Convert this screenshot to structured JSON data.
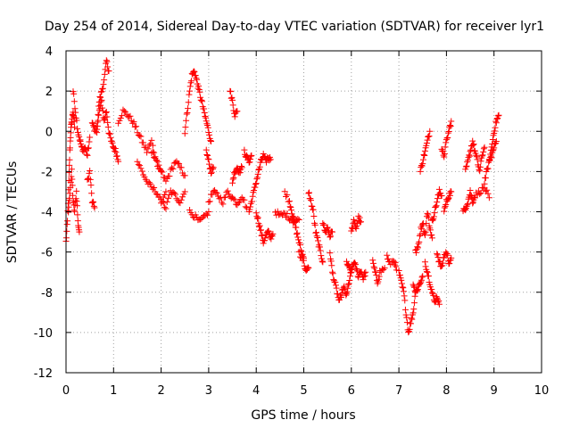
{
  "chart_data": {
    "type": "scatter",
    "title": "Day 254 of 2014, Sidereal Day-to-day VTEC variation (SDTVAR) for receiver lyr1",
    "xlabel": "GPS time / hours",
    "ylabel": "SDTVAR / TECUs",
    "xlim": [
      0,
      10
    ],
    "ylim": [
      -12,
      4
    ],
    "xticks": [
      "0",
      "1",
      "2",
      "3",
      "4",
      "5",
      "6",
      "7",
      "8",
      "9",
      "10"
    ],
    "yticks": [
      "4",
      "2",
      "0",
      "-2",
      "-4",
      "-6",
      "-8",
      "-10",
      "-12"
    ],
    "grid": true,
    "marker": "+",
    "color": "#ff0000",
    "series": [
      {
        "name": "SDTVAR",
        "segments": [
          {
            "x": [
              0.0,
              0.03,
              0.06,
              0.08,
              0.1,
              0.12,
              0.15,
              0.18
            ],
            "y": [
              -5.5,
              -4.5,
              -2.5,
              -1.0,
              0.0,
              0.5,
              1.0,
              0.2
            ]
          },
          {
            "x": [
              0.05,
              0.08,
              0.12,
              0.15,
              0.18,
              0.22,
              0.25,
              0.28
            ],
            "y": [
              -4.0,
              -3.0,
              -2.0,
              -3.5,
              -4.0,
              -3.0,
              -4.5,
              -5.0
            ]
          },
          {
            "x": [
              0.15,
              0.2,
              0.25,
              0.3
            ],
            "y": [
              2.0,
              1.0,
              0.0,
              -0.5
            ]
          },
          {
            "x": [
              0.3,
              0.35,
              0.4,
              0.45,
              0.5
            ],
            "y": [
              -0.5,
              -1.0,
              -0.8,
              -1.2,
              -0.3
            ]
          },
          {
            "x": [
              0.45,
              0.5,
              0.55,
              0.6
            ],
            "y": [
              -2.5,
              -2.0,
              -3.5,
              -3.8
            ]
          },
          {
            "x": [
              0.55,
              0.6,
              0.65,
              0.7,
              0.75,
              0.8,
              0.85,
              0.9
            ],
            "y": [
              0.5,
              0.0,
              0.2,
              1.5,
              2.0,
              2.5,
              3.5,
              3.0
            ]
          },
          {
            "x": [
              0.65,
              0.7,
              0.75,
              0.8,
              0.85,
              0.9,
              0.95,
              1.0,
              1.05,
              1.1
            ],
            "y": [
              0.0,
              1.0,
              1.5,
              0.5,
              1.0,
              0.0,
              -0.5,
              -0.8,
              -1.0,
              -1.5
            ]
          },
          {
            "x": [
              1.1,
              1.2,
              1.3,
              1.4,
              1.5,
              1.6,
              1.7,
              1.8,
              1.9,
              2.0
            ],
            "y": [
              0.5,
              1.0,
              0.8,
              0.5,
              0.0,
              -0.5,
              -1.0,
              -0.5,
              -1.5,
              -2.0
            ]
          },
          {
            "x": [
              1.5,
              1.6,
              1.7,
              1.8,
              1.9,
              2.0,
              2.1
            ],
            "y": [
              -1.5,
              -2.0,
              -2.5,
              -2.8,
              -3.0,
              -3.5,
              -3.0
            ]
          },
          {
            "x": [
              1.8,
              1.9,
              2.0,
              2.1,
              2.2,
              2.3,
              2.4,
              2.5
            ],
            "y": [
              -1.0,
              -1.5,
              -2.0,
              -2.5,
              -2.0,
              -1.5,
              -1.8,
              -2.2
            ]
          },
          {
            "x": [
              2.0,
              2.1,
              2.2,
              2.3,
              2.4,
              2.5
            ],
            "y": [
              -3.5,
              -3.8,
              -3.0,
              -3.2,
              -3.5,
              -3.0
            ]
          },
          {
            "x": [
              2.5,
              2.55,
              2.6,
              2.65,
              2.7,
              2.75,
              2.8,
              2.85,
              2.9,
              2.95,
              3.0,
              3.05
            ],
            "y": [
              0.0,
              1.0,
              2.0,
              2.8,
              3.0,
              2.5,
              2.0,
              1.5,
              1.0,
              0.5,
              0.0,
              -0.5
            ]
          },
          {
            "x": [
              2.6,
              2.7,
              2.8,
              2.9,
              3.0
            ],
            "y": [
              -4.0,
              -4.2,
              -4.5,
              -4.3,
              -4.0
            ]
          },
          {
            "x": [
              2.95,
              3.0,
              3.05,
              3.1
            ],
            "y": [
              -1.0,
              -1.5,
              -2.0,
              -1.8
            ]
          },
          {
            "x": [
              3.0,
              3.1,
              3.2,
              3.3,
              3.4,
              3.5,
              3.6,
              3.7,
              3.8
            ],
            "y": [
              -3.5,
              -3.0,
              -3.2,
              -3.5,
              -3.0,
              -3.3,
              -3.6,
              -3.2,
              -3.8
            ]
          },
          {
            "x": [
              3.45,
              3.5,
              3.55,
              3.6
            ],
            "y": [
              2.0,
              1.5,
              0.8,
              1.0
            ]
          },
          {
            "x": [
              3.5,
              3.55,
              3.6,
              3.65,
              3.7
            ],
            "y": [
              -2.5,
              -2.0,
              -1.8,
              -2.0,
              -1.8
            ]
          },
          {
            "x": [
              3.75,
              3.8,
              3.85,
              3.9
            ],
            "y": [
              -1.0,
              -1.3,
              -1.5,
              -1.2
            ]
          },
          {
            "x": [
              3.85,
              3.9,
              3.95,
              4.0,
              4.05,
              4.1,
              4.15,
              4.2,
              4.25,
              4.3
            ],
            "y": [
              -4.0,
              -3.5,
              -3.0,
              -2.5,
              -2.0,
              -1.5,
              -1.2,
              -1.5,
              -1.3,
              -1.4
            ]
          },
          {
            "x": [
              4.0,
              4.05,
              4.1,
              4.15,
              4.2,
              4.25,
              4.3,
              4.35
            ],
            "y": [
              -4.0,
              -4.5,
              -5.0,
              -5.5,
              -5.2,
              -5.0,
              -5.3,
              -5.1
            ]
          },
          {
            "x": [
              4.4,
              4.5,
              4.6,
              4.7,
              4.8,
              4.9
            ],
            "y": [
              -4.0,
              -4.2,
              -4.1,
              -4.3,
              -4.5,
              -4.4
            ]
          },
          {
            "x": [
              4.6,
              4.7,
              4.75,
              4.8,
              4.85,
              4.9,
              4.95,
              5.0
            ],
            "y": [
              -3.0,
              -3.5,
              -4.0,
              -4.5,
              -5.0,
              -5.5,
              -6.0,
              -6.3
            ]
          },
          {
            "x": [
              4.9,
              5.0,
              5.05,
              5.1
            ],
            "y": [
              -6.0,
              -6.5,
              -7.0,
              -6.8
            ]
          },
          {
            "x": [
              5.1,
              5.15,
              5.2,
              5.25,
              5.3,
              5.35,
              5.4
            ],
            "y": [
              -3.0,
              -3.5,
              -4.0,
              -5.0,
              -5.5,
              -6.0,
              -6.5
            ]
          },
          {
            "x": [
              5.4,
              5.45,
              5.5,
              5.55,
              5.6
            ],
            "y": [
              -4.5,
              -5.0,
              -4.8,
              -5.2,
              -5.0
            ]
          },
          {
            "x": [
              5.55,
              5.6,
              5.65,
              5.7,
              5.75,
              5.8,
              5.85,
              5.9,
              5.95,
              6.0
            ],
            "y": [
              -6.0,
              -7.0,
              -7.5,
              -8.0,
              -8.5,
              -8.0,
              -7.8,
              -8.2,
              -7.5,
              -7.0
            ]
          },
          {
            "x": [
              5.9,
              5.95,
              6.0,
              6.05,
              6.1,
              6.15,
              6.2,
              6.25,
              6.3
            ],
            "y": [
              -6.5,
              -6.8,
              -7.0,
              -6.5,
              -6.8,
              -7.2,
              -6.9,
              -7.3,
              -7.0
            ]
          },
          {
            "x": [
              6.0,
              6.05,
              6.1,
              6.15,
              6.2
            ],
            "y": [
              -5.0,
              -4.5,
              -4.8,
              -4.3,
              -4.5
            ]
          },
          {
            "x": [
              6.45,
              6.5,
              6.55,
              6.6,
              6.7
            ],
            "y": [
              -6.5,
              -7.0,
              -7.5,
              -7.0,
              -6.8
            ]
          },
          {
            "x": [
              6.75,
              6.8,
              6.9,
              6.95
            ],
            "y": [
              -6.2,
              -6.6,
              -6.4,
              -6.9
            ]
          },
          {
            "x": [
              7.0,
              7.05,
              7.1,
              7.15,
              7.2,
              7.25,
              7.3,
              7.35
            ],
            "y": [
              -7.0,
              -7.5,
              -8.0,
              -9.0,
              -10.0,
              -9.5,
              -9.0,
              -8.0
            ]
          },
          {
            "x": [
              7.3,
              7.35,
              7.4,
              7.45,
              7.5
            ],
            "y": [
              -7.5,
              -8.0,
              -7.8,
              -7.5,
              -7.2
            ]
          },
          {
            "x": [
              7.35,
              7.4,
              7.45,
              7.5,
              7.55,
              7.6,
              7.65,
              7.7
            ],
            "y": [
              -6.0,
              -5.8,
              -5.0,
              -4.5,
              -5.2,
              -4.0,
              -4.8,
              -5.3
            ]
          },
          {
            "x": [
              7.45,
              7.5,
              7.55,
              7.6,
              7.65
            ],
            "y": [
              -2.0,
              -1.5,
              -1.0,
              -0.5,
              0.0
            ]
          },
          {
            "x": [
              7.55,
              7.6,
              7.65,
              7.7,
              7.75,
              7.8,
              7.85
            ],
            "y": [
              -6.5,
              -7.0,
              -7.5,
              -8.0,
              -8.5,
              -8.2,
              -8.6
            ]
          },
          {
            "x": [
              7.7,
              7.75,
              7.8,
              7.85,
              7.9
            ],
            "y": [
              -4.5,
              -4.0,
              -3.5,
              -3.0,
              -3.2
            ]
          },
          {
            "x": [
              7.8,
              7.85,
              7.9,
              7.95,
              8.0,
              8.05,
              8.1
            ],
            "y": [
              -6.0,
              -6.5,
              -6.8,
              -6.2,
              -6.0,
              -6.5,
              -6.3
            ]
          },
          {
            "x": [
              7.9,
              7.95,
              8.0,
              8.05,
              8.1
            ],
            "y": [
              -1.0,
              -1.2,
              -0.5,
              0.0,
              0.5
            ]
          },
          {
            "x": [
              7.95,
              8.0,
              8.05,
              8.1
            ],
            "y": [
              -4.0,
              -3.5,
              -3.2,
              -3.0
            ]
          },
          {
            "x": [
              8.35,
              8.4,
              8.45,
              8.5,
              8.55,
              8.6,
              8.7,
              8.8,
              8.9
            ],
            "y": [
              -4.0,
              -3.8,
              -3.5,
              -3.0,
              -3.5,
              -3.2,
              -3.0,
              -2.8,
              -3.3
            ]
          },
          {
            "x": [
              8.4,
              8.45,
              8.5,
              8.55,
              8.6,
              8.65,
              8.7,
              8.75,
              8.8
            ],
            "y": [
              -2.0,
              -1.5,
              -1.0,
              -0.5,
              -1.0,
              -1.5,
              -2.0,
              -1.2,
              -0.8
            ]
          },
          {
            "x": [
              8.8,
              8.85,
              8.9,
              8.95,
              9.0,
              9.05,
              9.1
            ],
            "y": [
              -2.5,
              -2.0,
              -1.5,
              -0.8,
              0.0,
              0.5,
              0.8
            ]
          },
          {
            "x": [
              8.9,
              8.95,
              9.0,
              9.05
            ],
            "y": [
              -1.5,
              -1.2,
              -0.8,
              -0.5
            ]
          }
        ]
      }
    ]
  }
}
